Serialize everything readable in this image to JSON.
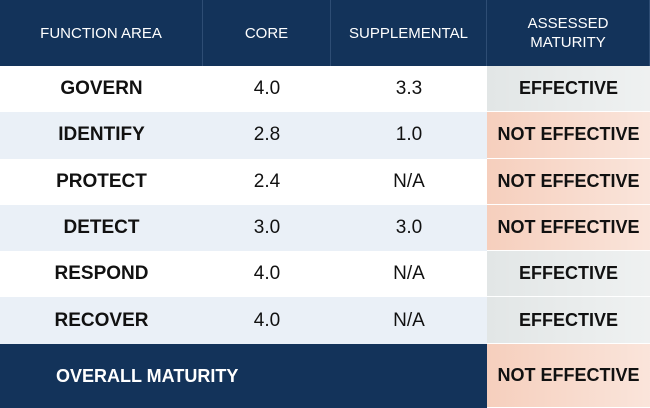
{
  "header": {
    "columns": [
      "FUNCTION AREA",
      "CORE",
      "SUPPLEMENTAL",
      "ASSESSED MATURITY"
    ]
  },
  "table": {
    "rows": [
      {
        "area": "GOVERN",
        "core": "4.0",
        "supplemental": "3.3",
        "maturity": "EFFECTIVE",
        "maturity_color": "#e2e6e6"
      },
      {
        "area": "IDENTIFY",
        "core": "2.8",
        "supplemental": "1.0",
        "maturity": "NOT EFFECTIVE",
        "maturity_color": "#f6cfbd"
      },
      {
        "area": "PROTECT",
        "core": "2.4",
        "supplemental": "N/A",
        "maturity": "NOT EFFECTIVE",
        "maturity_color": "#f6cfbd"
      },
      {
        "area": "DETECT",
        "core": "3.0",
        "supplemental": "3.0",
        "maturity": "NOT EFFECTIVE",
        "maturity_color": "#f6cfbd"
      },
      {
        "area": "RESPOND",
        "core": "4.0",
        "supplemental": "N/A",
        "maturity": "EFFECTIVE",
        "maturity_color": "#e2e6e6"
      },
      {
        "area": "RECOVER",
        "core": "4.0",
        "supplemental": "N/A",
        "maturity": "EFFECTIVE",
        "maturity_color": "#e2e6e6"
      }
    ]
  },
  "footer": {
    "label": "OVERALL MATURITY",
    "maturity": "NOT EFFECTIVE",
    "maturity_color": "#f6cfbd"
  }
}
